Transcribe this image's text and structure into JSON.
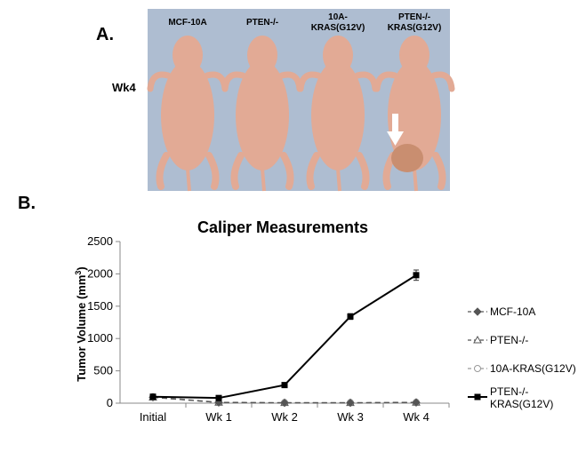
{
  "panel_a": {
    "letter": "A.",
    "week_label": "Wk4",
    "mouse_labels": [
      "MCF-10A",
      "PTEN-/-",
      "10A-\nKRAS(G12V)",
      "PTEN-/-\nKRAS(G12V)"
    ],
    "colors": {
      "background": "#aebdd1",
      "mouse": "#e2aa95",
      "arrow": "#ffffff",
      "tumor": "#c98e70"
    }
  },
  "panel_b": {
    "letter": "B."
  },
  "chart_data": {
    "type": "line",
    "title": "Caliper Measurements",
    "xlabel": "",
    "ylabel": "Tumor Volume (mm³)",
    "ylabel_parts": [
      "Tumor  Volume  (mm",
      "3",
      ")"
    ],
    "categories": [
      "Initial",
      "Wk 1",
      "Wk 2",
      "Wk 3",
      "Wk 4"
    ],
    "yticks": [
      0,
      500,
      1000,
      1500,
      2000,
      2500
    ],
    "ylim": [
      0,
      2500
    ],
    "grid": false,
    "legend_position": "right",
    "series": [
      {
        "name": "MCF-10A",
        "values": [
          90,
          10,
          5,
          5,
          10
        ],
        "errors": [
          0,
          0,
          0,
          0,
          0
        ],
        "color": "#555555",
        "dash": "6,4",
        "marker": "diamond"
      },
      {
        "name": "PTEN-/-",
        "values": [
          90,
          10,
          5,
          5,
          10
        ],
        "errors": [
          0,
          0,
          0,
          0,
          0
        ],
        "color": "#555555",
        "dash": "6,4",
        "marker": "triangle-open"
      },
      {
        "name": "10A-KRAS(G12V)",
        "values": [
          100,
          15,
          10,
          10,
          15
        ],
        "errors": [
          0,
          0,
          0,
          0,
          0
        ],
        "color": "#999999",
        "dash": "6,4",
        "marker": "circle-open"
      },
      {
        "name": "PTEN-/-\nKRAS(G12V)",
        "values": [
          100,
          80,
          280,
          1340,
          1980
        ],
        "errors": [
          15,
          10,
          15,
          45,
          80
        ],
        "color": "#000000",
        "dash": "",
        "marker": "square"
      }
    ]
  }
}
